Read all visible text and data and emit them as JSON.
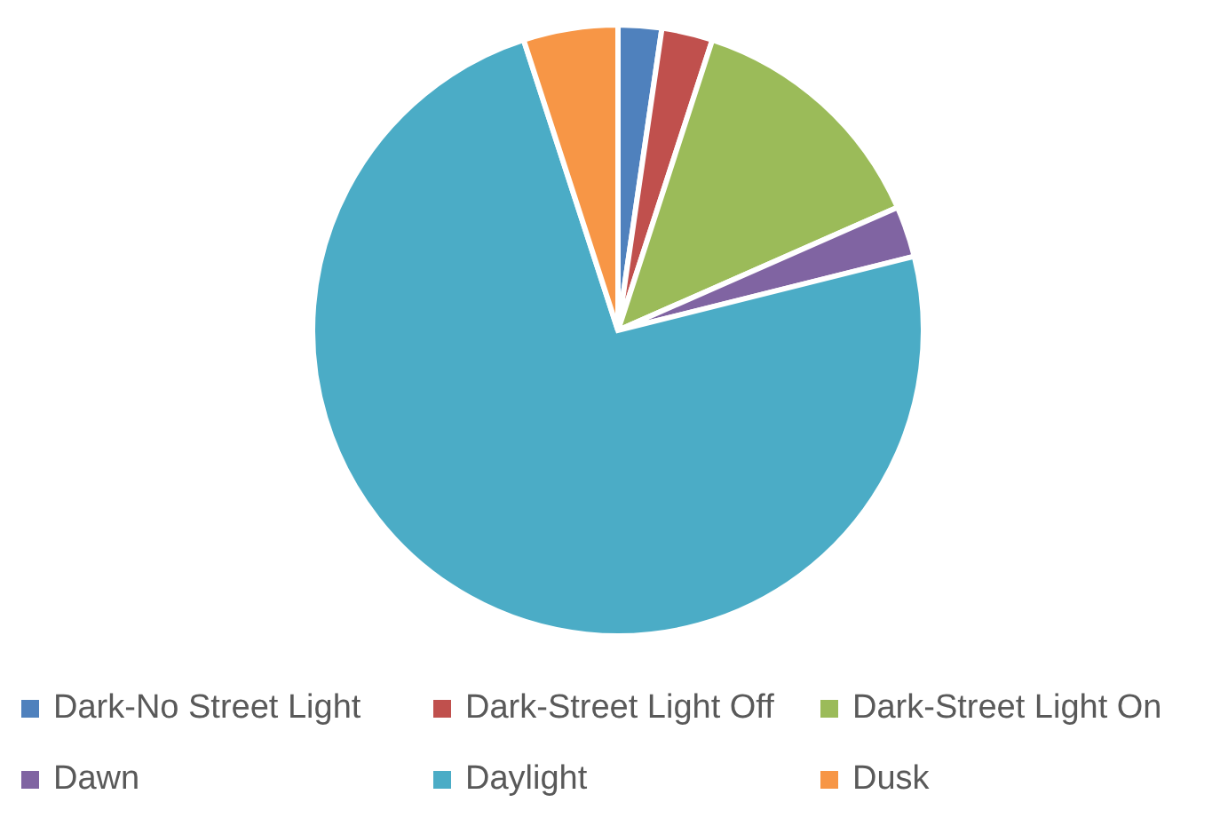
{
  "chart_data": {
    "type": "pie",
    "categories": [
      "Dark-No Street Light",
      "Dark-Street Light Off",
      "Dark-Street Light On",
      "Dawn",
      "Daylight",
      "Dusk"
    ],
    "values": [
      2.3,
      2.7,
      13.4,
      2.7,
      73.9,
      5.0
    ],
    "colors": [
      "#4f81bd",
      "#c0504d",
      "#9bbb59",
      "#8064a2",
      "#4bacc6",
      "#f79646"
    ],
    "legend": "bottom"
  }
}
